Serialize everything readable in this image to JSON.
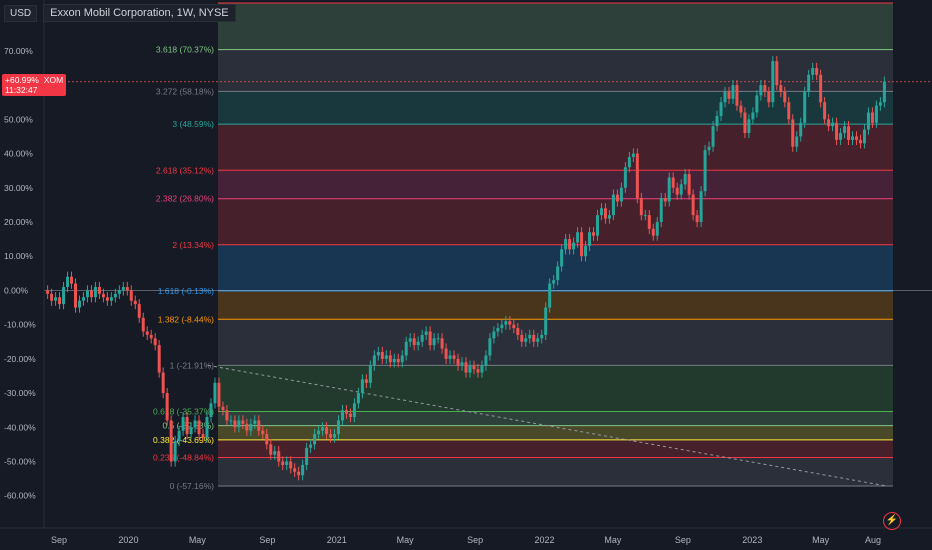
{
  "header": {
    "currency_label": "USD",
    "symbol_title": "Exxon Mobil Corporation, 1W, NYSE"
  },
  "price_badge": {
    "change": "+60.99%",
    "ticker": "XOM",
    "countdown": "11:32:47"
  },
  "colors": {
    "background": "#161a25",
    "up": "#26a69a",
    "down": "#ef5350",
    "badge": "#f23645"
  },
  "icons": [
    "lightning-icon"
  ],
  "chart_data": {
    "type": "candlestick",
    "title": "Exxon Mobil Corporation, 1W, NYSE",
    "y_unit": "percent",
    "y_ticks": [
      "70.00%",
      "60.00%",
      "50.00%",
      "40.00%",
      "30.00%",
      "20.00%",
      "10.00%",
      "0.00%",
      "-10.00%",
      "-20.00%",
      "-30.00%",
      "-40.00%",
      "-50.00%",
      "-60.00%"
    ],
    "y_tick_values": [
      70,
      60,
      50,
      40,
      30,
      20,
      10,
      0,
      -10,
      -20,
      -30,
      -40,
      -50,
      -60
    ],
    "ylim": [
      -62,
      85
    ],
    "x_ticks": [
      "Sep",
      "2020",
      "May",
      "Sep",
      "2021",
      "May",
      "Sep",
      "2022",
      "May",
      "Sep",
      "2023",
      "May",
      "Aug"
    ],
    "x_tick_dates": [
      "2019-09-01",
      "2020-01-01",
      "2020-05-01",
      "2020-09-01",
      "2021-01-01",
      "2021-05-01",
      "2021-09-01",
      "2022-01-01",
      "2022-05-01",
      "2022-09-01",
      "2023-01-01",
      "2023-05-01",
      "2023-08-01"
    ],
    "last_value": 60.99,
    "fib_levels": [
      {
        "label": "",
        "value": 84.0,
        "color": "#f23645"
      },
      {
        "label": "3.618 (70.37%)",
        "value": 70.37,
        "color": "#81c784"
      },
      {
        "label": "3.272 (58.18%)",
        "value": 58.18,
        "color": "#787b86"
      },
      {
        "label": "3 (48.59%)",
        "value": 48.59,
        "color": "#26a69a"
      },
      {
        "label": "2.618 (35.12%)",
        "value": 35.12,
        "color": "#f23645"
      },
      {
        "label": "2.382 (26.80%)",
        "value": 26.8,
        "color": "#ec407a"
      },
      {
        "label": "2 (13.34%)",
        "value": 13.34,
        "color": "#f23645"
      },
      {
        "label": "1.618 (-0.13%)",
        "value": -0.13,
        "color": "#2196f3"
      },
      {
        "label": "1.382 (-8.44%)",
        "value": -8.44,
        "color": "#ff9800"
      },
      {
        "label": "1 (-21.91%)",
        "value": -21.91,
        "color": "#787b86"
      },
      {
        "label": "0.618 (-35.37%)",
        "value": -35.37,
        "color": "#4caf50"
      },
      {
        "label": "0.5 (-39.53%)",
        "value": -39.53,
        "color": "#81c784"
      },
      {
        "label": "0.382 (-43.69%)",
        "value": -43.69,
        "color": "#ffeb3b"
      },
      {
        "label": "0.236 (-48.84%)",
        "value": -48.84,
        "color": "#f23645"
      },
      {
        "label": "0 (-57.16%)",
        "value": -57.16,
        "color": "#787b86"
      }
    ],
    "trend_line": {
      "start": {
        "date": "2020-05-20",
        "value": -21.9
      },
      "end": {
        "date": "2023-08-25",
        "value": -57.16
      }
    },
    "closes": [
      {
        "date": "2019-08-12",
        "value": -1.0
      },
      {
        "date": "2019-08-19",
        "value": -3.0
      },
      {
        "date": "2019-08-26",
        "value": -2.0
      },
      {
        "date": "2019-09-02",
        "value": -4.0
      },
      {
        "date": "2019-09-09",
        "value": 1.0
      },
      {
        "date": "2019-09-16",
        "value": 4.0
      },
      {
        "date": "2019-09-23",
        "value": 2.0
      },
      {
        "date": "2019-09-30",
        "value": -5.0
      },
      {
        "date": "2019-10-07",
        "value": -3.0
      },
      {
        "date": "2019-10-14",
        "value": -2.0
      },
      {
        "date": "2019-10-21",
        "value": 0.0
      },
      {
        "date": "2019-10-28",
        "value": -2.0
      },
      {
        "date": "2019-11-04",
        "value": 1.0
      },
      {
        "date": "2019-11-11",
        "value": -1.0
      },
      {
        "date": "2019-11-18",
        "value": -2.0
      },
      {
        "date": "2019-11-25",
        "value": -3.0
      },
      {
        "date": "2019-12-02",
        "value": -2.0
      },
      {
        "date": "2019-12-09",
        "value": -1.0
      },
      {
        "date": "2019-12-16",
        "value": 0.0
      },
      {
        "date": "2019-12-23",
        "value": 1.0
      },
      {
        "date": "2019-12-30",
        "value": 0.0
      },
      {
        "date": "2020-01-06",
        "value": -3.0
      },
      {
        "date": "2020-01-13",
        "value": -4.0
      },
      {
        "date": "2020-01-20",
        "value": -8.0
      },
      {
        "date": "2020-01-27",
        "value": -12.0
      },
      {
        "date": "2020-02-03",
        "value": -13.0
      },
      {
        "date": "2020-02-10",
        "value": -14.0
      },
      {
        "date": "2020-02-17",
        "value": -16.0
      },
      {
        "date": "2020-02-24",
        "value": -24.0
      },
      {
        "date": "2020-03-02",
        "value": -30.0
      },
      {
        "date": "2020-03-09",
        "value": -38.0
      },
      {
        "date": "2020-03-16",
        "value": -50.0
      },
      {
        "date": "2020-03-23",
        "value": -44.0
      },
      {
        "date": "2020-03-30",
        "value": -41.0
      },
      {
        "date": "2020-04-06",
        "value": -37.0
      },
      {
        "date": "2020-04-13",
        "value": -42.0
      },
      {
        "date": "2020-04-20",
        "value": -40.0
      },
      {
        "date": "2020-04-27",
        "value": -38.0
      },
      {
        "date": "2020-05-04",
        "value": -42.0
      },
      {
        "date": "2020-05-11",
        "value": -43.0
      },
      {
        "date": "2020-05-18",
        "value": -37.0
      },
      {
        "date": "2020-05-25",
        "value": -33.0
      },
      {
        "date": "2020-06-01",
        "value": -27.0
      },
      {
        "date": "2020-06-08",
        "value": -34.0
      },
      {
        "date": "2020-06-15",
        "value": -35.0
      },
      {
        "date": "2020-06-22",
        "value": -38.0
      },
      {
        "date": "2020-06-29",
        "value": -38.0
      },
      {
        "date": "2020-07-06",
        "value": -40.0
      },
      {
        "date": "2020-07-13",
        "value": -38.0
      },
      {
        "date": "2020-07-20",
        "value": -39.0
      },
      {
        "date": "2020-07-27",
        "value": -41.0
      },
      {
        "date": "2020-08-03",
        "value": -39.0
      },
      {
        "date": "2020-08-10",
        "value": -38.0
      },
      {
        "date": "2020-08-17",
        "value": -41.0
      },
      {
        "date": "2020-08-24",
        "value": -42.0
      },
      {
        "date": "2020-08-31",
        "value": -45.0
      },
      {
        "date": "2020-09-07",
        "value": -48.0
      },
      {
        "date": "2020-09-14",
        "value": -47.0
      },
      {
        "date": "2020-09-21",
        "value": -50.0
      },
      {
        "date": "2020-09-28",
        "value": -51.0
      },
      {
        "date": "2020-10-05",
        "value": -50.0
      },
      {
        "date": "2020-10-12",
        "value": -52.0
      },
      {
        "date": "2020-10-19",
        "value": -53.0
      },
      {
        "date": "2020-10-26",
        "value": -54.0
      },
      {
        "date": "2020-11-02",
        "value": -51.0
      },
      {
        "date": "2020-11-09",
        "value": -46.0
      },
      {
        "date": "2020-11-16",
        "value": -45.0
      },
      {
        "date": "2020-11-23",
        "value": -42.0
      },
      {
        "date": "2020-11-30",
        "value": -41.0
      },
      {
        "date": "2020-12-07",
        "value": -40.0
      },
      {
        "date": "2020-12-14",
        "value": -42.0
      },
      {
        "date": "2020-12-21",
        "value": -43.0
      },
      {
        "date": "2020-12-28",
        "value": -42.0
      },
      {
        "date": "2021-01-04",
        "value": -38.0
      },
      {
        "date": "2021-01-11",
        "value": -35.0
      },
      {
        "date": "2021-01-18",
        "value": -36.0
      },
      {
        "date": "2021-01-25",
        "value": -37.0
      },
      {
        "date": "2021-02-01",
        "value": -33.0
      },
      {
        "date": "2021-02-08",
        "value": -30.0
      },
      {
        "date": "2021-02-15",
        "value": -26.0
      },
      {
        "date": "2021-02-22",
        "value": -27.0
      },
      {
        "date": "2021-03-01",
        "value": -22.0
      },
      {
        "date": "2021-03-08",
        "value": -19.0
      },
      {
        "date": "2021-03-15",
        "value": -18.0
      },
      {
        "date": "2021-03-22",
        "value": -20.0
      },
      {
        "date": "2021-03-29",
        "value": -19.0
      },
      {
        "date": "2021-04-05",
        "value": -21.0
      },
      {
        "date": "2021-04-12",
        "value": -20.0
      },
      {
        "date": "2021-04-19",
        "value": -21.0
      },
      {
        "date": "2021-04-26",
        "value": -19.0
      },
      {
        "date": "2021-05-03",
        "value": -15.0
      },
      {
        "date": "2021-05-10",
        "value": -14.0
      },
      {
        "date": "2021-05-17",
        "value": -16.0
      },
      {
        "date": "2021-05-24",
        "value": -15.0
      },
      {
        "date": "2021-05-31",
        "value": -13.0
      },
      {
        "date": "2021-06-07",
        "value": -12.0
      },
      {
        "date": "2021-06-14",
        "value": -16.0
      },
      {
        "date": "2021-06-21",
        "value": -14.0
      },
      {
        "date": "2021-06-28",
        "value": -14.0
      },
      {
        "date": "2021-07-05",
        "value": -17.0
      },
      {
        "date": "2021-07-12",
        "value": -20.0
      },
      {
        "date": "2021-07-19",
        "value": -19.0
      },
      {
        "date": "2021-07-26",
        "value": -20.0
      },
      {
        "date": "2021-08-02",
        "value": -22.0
      },
      {
        "date": "2021-08-09",
        "value": -21.0
      },
      {
        "date": "2021-08-16",
        "value": -24.0
      },
      {
        "date": "2021-08-23",
        "value": -22.0
      },
      {
        "date": "2021-08-30",
        "value": -23.0
      },
      {
        "date": "2021-09-06",
        "value": -24.0
      },
      {
        "date": "2021-09-13",
        "value": -22.0
      },
      {
        "date": "2021-09-20",
        "value": -19.0
      },
      {
        "date": "2021-09-27",
        "value": -14.0
      },
      {
        "date": "2021-10-04",
        "value": -12.0
      },
      {
        "date": "2021-10-11",
        "value": -11.0
      },
      {
        "date": "2021-10-18",
        "value": -10.0
      },
      {
        "date": "2021-10-25",
        "value": -9.0
      },
      {
        "date": "2021-11-01",
        "value": -10.0
      },
      {
        "date": "2021-11-08",
        "value": -11.0
      },
      {
        "date": "2021-11-15",
        "value": -13.0
      },
      {
        "date": "2021-11-22",
        "value": -15.0
      },
      {
        "date": "2021-11-29",
        "value": -14.0
      },
      {
        "date": "2021-12-06",
        "value": -13.0
      },
      {
        "date": "2021-12-13",
        "value": -15.0
      },
      {
        "date": "2021-12-20",
        "value": -14.0
      },
      {
        "date": "2021-12-27",
        "value": -13.0
      },
      {
        "date": "2022-01-03",
        "value": -5.0
      },
      {
        "date": "2022-01-10",
        "value": 2.0
      },
      {
        "date": "2022-01-17",
        "value": 3.0
      },
      {
        "date": "2022-01-24",
        "value": 7.0
      },
      {
        "date": "2022-01-31",
        "value": 12.0
      },
      {
        "date": "2022-02-07",
        "value": 15.0
      },
      {
        "date": "2022-02-14",
        "value": 12.0
      },
      {
        "date": "2022-02-21",
        "value": 14.0
      },
      {
        "date": "2022-02-28",
        "value": 17.0
      },
      {
        "date": "2022-03-07",
        "value": 10.0
      },
      {
        "date": "2022-03-14",
        "value": 13.0
      },
      {
        "date": "2022-03-21",
        "value": 17.0
      },
      {
        "date": "2022-03-28",
        "value": 16.0
      },
      {
        "date": "2022-04-04",
        "value": 22.0
      },
      {
        "date": "2022-04-11",
        "value": 24.0
      },
      {
        "date": "2022-04-18",
        "value": 21.0
      },
      {
        "date": "2022-04-25",
        "value": 22.0
      },
      {
        "date": "2022-05-02",
        "value": 28.0
      },
      {
        "date": "2022-05-09",
        "value": 26.0
      },
      {
        "date": "2022-05-16",
        "value": 30.0
      },
      {
        "date": "2022-05-23",
        "value": 36.0
      },
      {
        "date": "2022-05-30",
        "value": 39.0
      },
      {
        "date": "2022-06-06",
        "value": 40.0
      },
      {
        "date": "2022-06-13",
        "value": 27.0
      },
      {
        "date": "2022-06-20",
        "value": 22.0
      },
      {
        "date": "2022-06-27",
        "value": 22.0
      },
      {
        "date": "2022-07-04",
        "value": 18.0
      },
      {
        "date": "2022-07-11",
        "value": 16.0
      },
      {
        "date": "2022-07-18",
        "value": 20.0
      },
      {
        "date": "2022-07-25",
        "value": 27.0
      },
      {
        "date": "2022-08-01",
        "value": 26.0
      },
      {
        "date": "2022-08-08",
        "value": 33.0
      },
      {
        "date": "2022-08-15",
        "value": 30.0
      },
      {
        "date": "2022-08-22",
        "value": 28.0
      },
      {
        "date": "2022-08-29",
        "value": 31.0
      },
      {
        "date": "2022-09-05",
        "value": 34.0
      },
      {
        "date": "2022-09-12",
        "value": 28.0
      },
      {
        "date": "2022-09-19",
        "value": 22.0
      },
      {
        "date": "2022-09-26",
        "value": 20.0
      },
      {
        "date": "2022-10-03",
        "value": 29.0
      },
      {
        "date": "2022-10-10",
        "value": 41.0
      },
      {
        "date": "2022-10-17",
        "value": 42.0
      },
      {
        "date": "2022-10-24",
        "value": 48.0
      },
      {
        "date": "2022-10-31",
        "value": 51.0
      },
      {
        "date": "2022-11-07",
        "value": 55.0
      },
      {
        "date": "2022-11-14",
        "value": 58.0
      },
      {
        "date": "2022-11-21",
        "value": 56.0
      },
      {
        "date": "2022-11-28",
        "value": 60.0
      },
      {
        "date": "2022-12-05",
        "value": 54.0
      },
      {
        "date": "2022-12-12",
        "value": 52.0
      },
      {
        "date": "2022-12-19",
        "value": 46.0
      },
      {
        "date": "2022-12-26",
        "value": 50.0
      },
      {
        "date": "2023-01-02",
        "value": 52.0
      },
      {
        "date": "2023-01-09",
        "value": 57.0
      },
      {
        "date": "2023-01-16",
        "value": 60.0
      },
      {
        "date": "2023-01-23",
        "value": 58.0
      },
      {
        "date": "2023-01-30",
        "value": 55.0
      },
      {
        "date": "2023-02-06",
        "value": 67.0
      },
      {
        "date": "2023-02-13",
        "value": 60.0
      },
      {
        "date": "2023-02-20",
        "value": 58.0
      },
      {
        "date": "2023-02-27",
        "value": 55.0
      },
      {
        "date": "2023-03-06",
        "value": 50.0
      },
      {
        "date": "2023-03-13",
        "value": 42.0
      },
      {
        "date": "2023-03-20",
        "value": 45.0
      },
      {
        "date": "2023-03-27",
        "value": 49.0
      },
      {
        "date": "2023-04-03",
        "value": 58.0
      },
      {
        "date": "2023-04-10",
        "value": 63.0
      },
      {
        "date": "2023-04-17",
        "value": 65.0
      },
      {
        "date": "2023-04-24",
        "value": 63.0
      },
      {
        "date": "2023-05-01",
        "value": 55.0
      },
      {
        "date": "2023-05-08",
        "value": 50.0
      },
      {
        "date": "2023-05-15",
        "value": 48.0
      },
      {
        "date": "2023-05-22",
        "value": 49.0
      },
      {
        "date": "2023-05-29",
        "value": 44.0
      },
      {
        "date": "2023-06-05",
        "value": 46.0
      },
      {
        "date": "2023-06-12",
        "value": 48.0
      },
      {
        "date": "2023-06-19",
        "value": 44.0
      },
      {
        "date": "2023-06-26",
        "value": 45.0
      },
      {
        "date": "2023-07-03",
        "value": 44.0
      },
      {
        "date": "2023-07-10",
        "value": 43.0
      },
      {
        "date": "2023-07-17",
        "value": 47.0
      },
      {
        "date": "2023-07-24",
        "value": 52.0
      },
      {
        "date": "2023-07-31",
        "value": 49.0
      },
      {
        "date": "2023-08-07",
        "value": 54.0
      },
      {
        "date": "2023-08-14",
        "value": 55.0
      },
      {
        "date": "2023-08-21",
        "value": 61.0
      }
    ]
  }
}
